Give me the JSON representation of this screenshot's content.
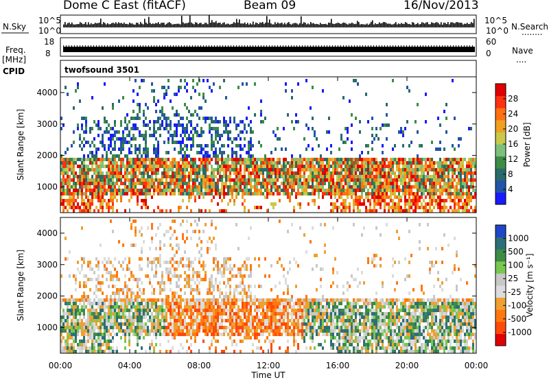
{
  "header": {
    "station": "Dome C East (fitACF)",
    "beam": "Beam 09",
    "date": "16/Nov/2013"
  },
  "side_labels": {
    "nsky": "N.Sky",
    "nsearch": "N.Search",
    "freq": "Freq.",
    "freq_unit": "[MHz]",
    "nave": "Nave",
    "cpid": "CPID",
    "cpid_value": "twofsound 3501",
    "dots": "........",
    "dots_short": "...."
  },
  "noise_panel": {
    "left_ticks": [
      "10^5",
      "10^0"
    ],
    "right_ticks": [
      "10^5",
      "10^0"
    ]
  },
  "freq_panel": {
    "left_ticks": [
      "18",
      "8"
    ],
    "right_ticks": [
      "60",
      "0"
    ]
  },
  "x_axis": {
    "label": "Time UT",
    "ticks": [
      "00:00",
      "04:00",
      "08:00",
      "12:00",
      "16:00",
      "20:00",
      "00:00"
    ]
  },
  "chart_data": [
    {
      "type": "heatmap",
      "name": "power",
      "ylabel": "Slant Range [km]",
      "yticks": [
        1000,
        2000,
        3000,
        4000
      ],
      "ylim": [
        180,
        4500
      ],
      "xlim_hours": [
        0,
        24
      ],
      "colorbar": {
        "label": "Power [dB]",
        "ticks": [
          "4",
          "8",
          "12",
          "16",
          "20",
          "24",
          "28"
        ],
        "colors": [
          "#1a1aff",
          "#2255aa",
          "#2a6a6a",
          "#3c8c46",
          "#7cc07c",
          "#c8c84a",
          "#f0a020",
          "#ff7010",
          "#ff3010",
          "#e00000"
        ]
      },
      "bands": [
        {
          "range_km": [
            1050,
            1650
          ],
          "intensity": "medium-high",
          "hours": [
            0,
            24
          ]
        },
        {
          "range_km": [
            250,
            550
          ],
          "intensity": "high",
          "hours": [
            0,
            3
          ]
        },
        {
          "range_km": [
            300,
            700
          ],
          "intensity": "high",
          "hours": [
            15.5,
            24
          ]
        },
        {
          "range_km": [
            1900,
            3300
          ],
          "intensity": "low",
          "hours": [
            1,
            11
          ]
        }
      ]
    },
    {
      "type": "heatmap",
      "name": "velocity",
      "ylabel": "Slant Range [km]",
      "yticks": [
        1000,
        2000,
        3000,
        4000
      ],
      "ylim": [
        180,
        4500
      ],
      "xlim_hours": [
        0,
        24
      ],
      "colorbar": {
        "label": "Velocity [m s⁻¹]",
        "ticks": [
          "1000",
          "500",
          "100",
          "25",
          "-25",
          "-100",
          "-500",
          "-1000"
        ],
        "colors": [
          "#1e46c8",
          "#2e6e78",
          "#3c8c46",
          "#78c850",
          "#c8c8c8",
          "#dcdcdc",
          "#f0a030",
          "#ff7810",
          "#ff4a0a",
          "#e00000"
        ]
      },
      "bands": [
        {
          "range_km": [
            900,
            1700
          ],
          "sign": "mixed",
          "hours": [
            0,
            24
          ]
        },
        {
          "range_km": [
            1800,
            2800
          ],
          "sign": "near-zero",
          "hours": [
            1,
            10
          ]
        },
        {
          "range_km": [
            300,
            700
          ],
          "sign": "positive",
          "hours": [
            16,
            24
          ]
        }
      ]
    }
  ]
}
